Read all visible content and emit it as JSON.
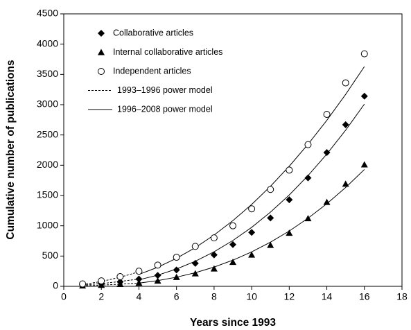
{
  "chart_data": {
    "type": "scatter",
    "xlabel": "Years since 1993",
    "ylabel": "Cumulative number of publications",
    "xlim": [
      0,
      18
    ],
    "xticks": [
      0,
      2,
      4,
      6,
      8,
      10,
      12,
      14,
      16,
      18
    ],
    "ylim": [
      0,
      4500
    ],
    "yticks": [
      0,
      500,
      1000,
      1500,
      2000,
      2500,
      3000,
      3500,
      4000,
      4500
    ],
    "series": [
      {
        "name": "Collaborative articles",
        "marker": "diamond",
        "color": "#000000",
        "x": [
          1,
          2,
          3,
          4,
          5,
          6,
          7,
          8,
          9,
          10,
          11,
          12,
          13,
          14,
          15,
          16
        ],
        "values": [
          25,
          45,
          75,
          120,
          180,
          270,
          380,
          520,
          690,
          890,
          1130,
          1430,
          1790,
          2210,
          2670,
          3140
        ]
      },
      {
        "name": "Internal collaborative articles",
        "marker": "triangle",
        "color": "#000000",
        "x": [
          1,
          2,
          3,
          4,
          5,
          6,
          7,
          8,
          9,
          10,
          11,
          12,
          13,
          14,
          15,
          16
        ],
        "values": [
          10,
          20,
          35,
          55,
          90,
          150,
          210,
          290,
          400,
          520,
          680,
          880,
          1120,
          1390,
          1690,
          2010
        ]
      },
      {
        "name": "Independent articles",
        "marker": "open-circle",
        "color": "#000000",
        "x": [
          1,
          2,
          3,
          4,
          5,
          6,
          7,
          8,
          9,
          10,
          11,
          12,
          13,
          14,
          15,
          16
        ],
        "values": [
          40,
          90,
          160,
          250,
          350,
          480,
          660,
          800,
          1000,
          1280,
          1600,
          1920,
          2340,
          2840,
          3360,
          3840
        ]
      }
    ],
    "fits": [
      {
        "name": "1993–1996 power model",
        "style": "dashed",
        "color": "#000000",
        "curves": [
          {
            "x": [
              1,
              2,
              3,
              4
            ],
            "values": [
              30,
              80,
              150,
              240
            ]
          },
          {
            "x": [
              1,
              2,
              3,
              4
            ],
            "values": [
              20,
              45,
              80,
              120
            ]
          },
          {
            "x": [
              1,
              2,
              3,
              4
            ],
            "values": [
              8,
              20,
              35,
              55
            ]
          }
        ]
      },
      {
        "name": "1996–2008 power model",
        "style": "solid",
        "color": "#000000",
        "curves": [
          {
            "x": [
              4,
              5,
              6,
              7,
              8,
              9,
              10,
              11,
              12,
              13,
              14,
              15,
              16
            ],
            "values": [
              197,
              315,
              463,
              639,
              847,
              1085,
              1353,
              1652,
              1984,
              2347,
              2742,
              3170,
              3630
            ]
          },
          {
            "x": [
              4,
              5,
              6,
              7,
              8,
              9,
              10,
              11,
              12,
              13,
              14,
              15,
              16
            ],
            "values": [
              108,
              184,
              286,
              414,
              570,
              757,
              974,
              1225,
              1509,
              1829,
              2185,
              2578,
              3010
            ]
          },
          {
            "x": [
              4,
              5,
              6,
              7,
              8,
              9,
              10,
              11,
              12,
              13,
              14,
              15,
              16
            ],
            "values": [
              53,
              94,
              151,
              225,
              318,
              432,
              569,
              729,
              913,
              1125,
              1364,
              1632,
              1930
            ]
          }
        ]
      }
    ]
  }
}
